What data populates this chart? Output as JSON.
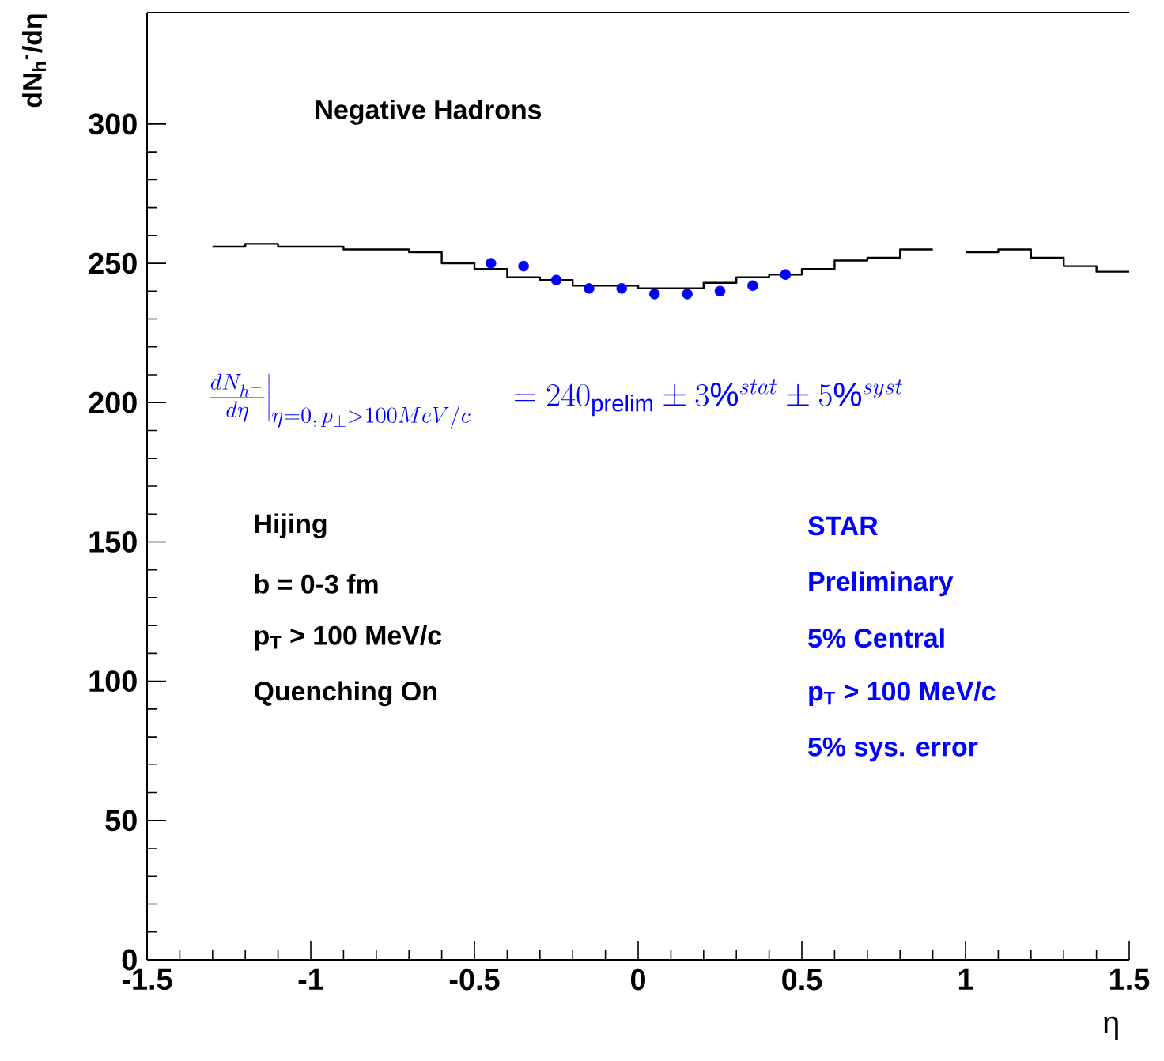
{
  "chart_data": {
    "type": "step",
    "title": "Negative Hadrons",
    "xlabel": "η",
    "ylabel": "dN$_{h}$$^{-}$/dη",
    "xlim": [
      -1.5,
      1.5
    ],
    "ylim": [
      0,
      340
    ],
    "xticks": [
      -1.5,
      -1,
      -0.5,
      0,
      0.5,
      1,
      1.5
    ],
    "yticks": [
      0,
      50,
      100,
      150,
      200,
      250,
      300
    ],
    "series": [
      {
        "color": "#000000",
        "x": [
          -1.3,
          -1.2,
          -1.1,
          -1.0,
          -0.9,
          -0.8,
          -0.7,
          -0.6,
          -0.5,
          -0.4,
          -0.3,
          -0.2,
          -0.1,
          0.0,
          0.1,
          0.2,
          0.3,
          0.4,
          0.5,
          0.6,
          0.7,
          0.8,
          0.9,
          1.0,
          1.1,
          1.2,
          1.3,
          1.4,
          1.5
        ],
        "values": [
          256,
          257,
          256,
          256,
          255,
          255,
          254,
          250,
          248,
          245,
          244,
          242,
          242,
          241,
          241,
          243,
          245,
          246,
          248,
          251,
          252,
          255,
          null,
          254,
          255,
          252,
          249,
          247,
          247
        ]
      },
      {
        "type": "scatter",
        "color": "#0000ff",
        "marker": "circle",
        "x": [
          -0.45,
          -0.35,
          -0.25,
          -0.15,
          -0.05,
          0.05,
          0.15,
          0.25,
          0.35,
          0.45
        ],
        "values": [
          250,
          249,
          244,
          241,
          241,
          239,
          239,
          240,
          242,
          246
        ]
      }
    ],
    "annotations": [
      "\\left.\\frac{dN_{h^{-}}}{d\\eta}\\right|_{\\eta=0,\\,p_{\\perp}>100MeV/c}\\quad =240_{\\mathrm{prelim}}\\pm 3\\%^{stat}\\pm 5\\%^{syst}",
      "Hijing",
      "b = 0-3 fm",
      "p$_{T}$ > 100 MeV/c",
      "Quenching On",
      "STAR",
      "Preliminary",
      "5% Central",
      "p$_{T}$ > 100 MeV/c",
      "5% sys. error"
    ]
  }
}
